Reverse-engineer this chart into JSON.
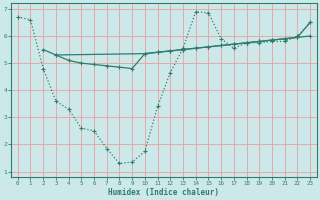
{
  "line1_x": [
    0,
    1,
    2,
    3,
    4,
    5,
    6,
    7,
    8,
    9,
    10,
    11,
    12,
    13,
    14,
    15,
    16,
    17,
    18,
    19,
    20,
    21,
    22,
    23
  ],
  "line1_y": [
    6.7,
    6.6,
    4.8,
    3.6,
    3.3,
    2.6,
    2.5,
    1.85,
    1.3,
    1.35,
    1.75,
    3.4,
    4.65,
    5.55,
    6.9,
    6.85,
    5.9,
    5.55,
    5.75,
    5.75,
    5.8,
    5.8,
    6.0,
    6.5
  ],
  "line2_x": [
    2,
    3,
    10,
    11,
    12,
    13,
    14,
    15,
    16,
    17,
    18,
    19,
    20,
    21,
    22,
    23
  ],
  "line2_y": [
    5.5,
    5.3,
    5.35,
    5.4,
    5.45,
    5.5,
    5.55,
    5.6,
    5.65,
    5.7,
    5.75,
    5.8,
    5.85,
    5.9,
    5.95,
    6.5
  ],
  "line3_x": [
    3,
    4,
    5,
    6,
    7,
    8,
    9,
    10,
    11,
    12,
    13,
    14,
    15,
    16,
    17,
    18,
    19,
    20,
    21,
    22,
    23
  ],
  "line3_y": [
    5.3,
    5.1,
    5.0,
    4.95,
    4.9,
    4.85,
    4.8,
    5.35,
    5.4,
    5.45,
    5.5,
    5.55,
    5.6,
    5.65,
    5.7,
    5.75,
    5.8,
    5.85,
    5.9,
    5.95,
    6.0
  ],
  "bg_color": "#cce8e8",
  "grid_color": "#e8a0a0",
  "line_color": "#2e7d6e",
  "xlabel": "Humidex (Indice chaleur)",
  "xlim": [
    -0.5,
    23.5
  ],
  "ylim": [
    0.8,
    7.2
  ],
  "yticks": [
    1,
    2,
    3,
    4,
    5,
    6,
    7
  ],
  "xticks": [
    0,
    1,
    2,
    3,
    4,
    5,
    6,
    7,
    8,
    9,
    10,
    11,
    12,
    13,
    14,
    15,
    16,
    17,
    18,
    19,
    20,
    21,
    22,
    23
  ]
}
